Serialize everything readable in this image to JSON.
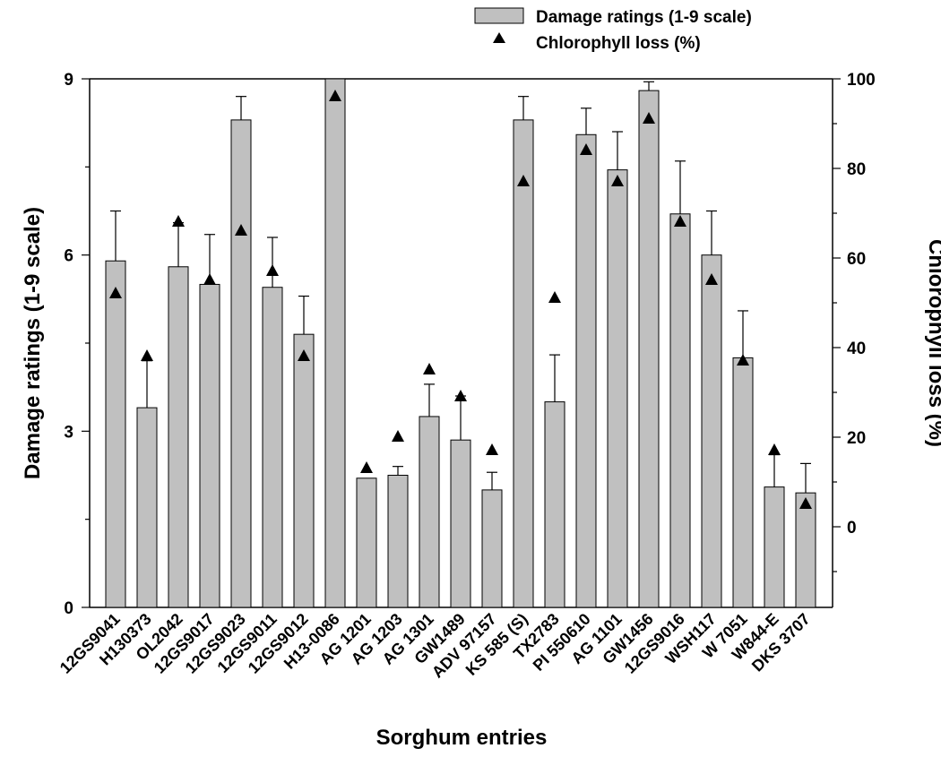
{
  "chart_data": {
    "type": "bar",
    "xlabel": "Sorghum entries",
    "ylabel": "Damage ratings (1-9 scale)",
    "y2label": "Chlorophyll loss (%)",
    "ylim": [
      0,
      9
    ],
    "yticks": [
      0,
      3,
      6,
      9
    ],
    "y2lim": [
      -18,
      100
    ],
    "y2ticks": [
      0,
      20,
      40,
      60,
      80,
      100
    ],
    "categories": [
      "12GS9041",
      "H130373",
      "OL2042",
      "12GS9017",
      "12GS9023",
      "12GS9011",
      "12GS9012",
      "H13-0086",
      "AG 1201",
      "AG 1203",
      "AG 1301",
      "GW1489",
      "ADV 97157",
      "KS 585 (S)",
      "TX2783",
      "PI 550610",
      "AG 1101",
      "GW1456",
      "12GS9016",
      "WSH117",
      "W 7051",
      "W844-E",
      "DKS 3707"
    ],
    "series": [
      {
        "name": "Damage ratings (1-9 scale)",
        "type": "bar",
        "axis": "left",
        "color": "#c0c0c0",
        "values": [
          5.9,
          3.4,
          5.8,
          5.5,
          8.3,
          5.45,
          4.65,
          9.0,
          2.2,
          2.25,
          3.25,
          2.85,
          2.0,
          8.3,
          3.5,
          8.05,
          7.45,
          8.8,
          6.7,
          6.0,
          4.25,
          2.05,
          1.95
        ],
        "error": [
          0.85,
          0.8,
          0.75,
          0.85,
          0.4,
          0.85,
          0.65,
          0.0,
          0.0,
          0.15,
          0.55,
          0.75,
          0.3,
          0.4,
          0.8,
          0.45,
          0.65,
          0.15,
          0.9,
          0.75,
          0.8,
          0.55,
          0.5
        ]
      },
      {
        "name": "Chlorophyll loss (%)",
        "type": "scatter",
        "axis": "right",
        "marker": "triangle",
        "color": "#000000",
        "values": [
          52,
          38,
          68,
          55,
          66,
          57,
          38,
          96,
          13,
          20,
          35,
          29,
          17,
          77,
          51,
          84,
          77,
          91,
          68,
          55,
          37,
          17,
          5
        ]
      }
    ],
    "legend_position": "top-right"
  }
}
